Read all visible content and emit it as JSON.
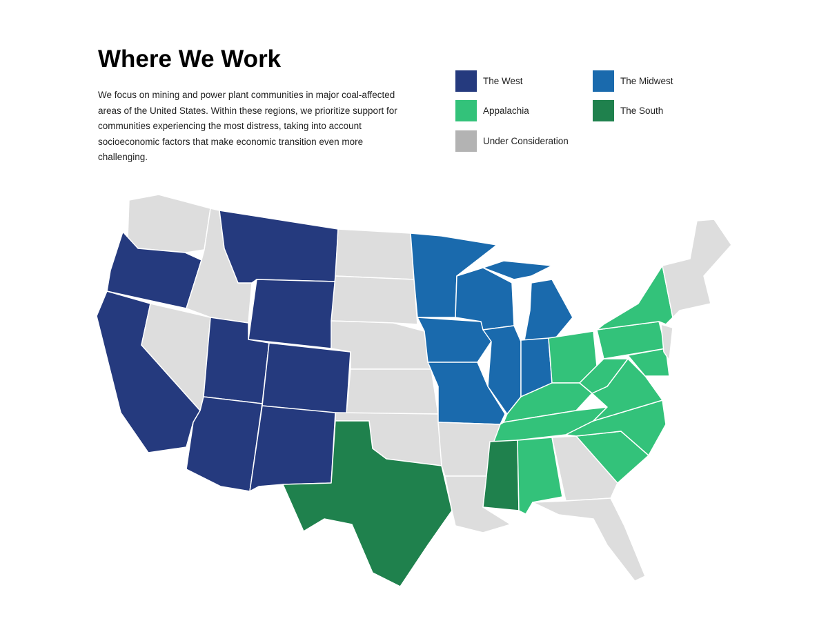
{
  "header": {
    "title": "Where We Work",
    "description": "We focus on mining and power plant communities in major coal-affected areas of the United States. Within these regions, we prioritize support for communities experiencing the most distress, taking into account socioeconomic factors that make economic transition even more challenging."
  },
  "legend": [
    {
      "key": "west",
      "label": "The West",
      "color": "#253a7e"
    },
    {
      "key": "midwest",
      "label": "The Midwest",
      "color": "#1a6aad"
    },
    {
      "key": "appalachia",
      "label": "Appalachia",
      "color": "#33c27a"
    },
    {
      "key": "south",
      "label": "The South",
      "color": "#1f814d"
    },
    {
      "key": "under",
      "label": "Under Consideration",
      "color": "#b3b3b3"
    }
  ],
  "map_fill_under": "#dddddd",
  "states": {
    "WA": "under",
    "OR": "west",
    "CA": "west",
    "NV": "under",
    "ID": "under",
    "MT": "west",
    "WY": "west",
    "UT": "west",
    "CO": "west",
    "AZ": "west",
    "NM": "west",
    "ND": "under",
    "SD": "under",
    "NE": "under",
    "KS": "under",
    "OK": "under",
    "TX": "south",
    "MN": "midwest",
    "IA": "midwest",
    "MO": "midwest",
    "WI": "midwest",
    "IL": "midwest",
    "MI": "midwest",
    "MIU": "midwest",
    "IN": "midwest",
    "AR": "under",
    "LA": "under",
    "MS": "south",
    "AL": "appalachia",
    "GA": "under",
    "FL": "under",
    "OH": "appalachia",
    "KY": "appalachia",
    "TN": "appalachia",
    "WV": "appalachia",
    "VA": "appalachia",
    "NC": "appalachia",
    "SC": "appalachia",
    "PA": "appalachia",
    "NY": "appalachia",
    "MD": "appalachia",
    "NJ": "under",
    "NE_REGION": "under"
  }
}
